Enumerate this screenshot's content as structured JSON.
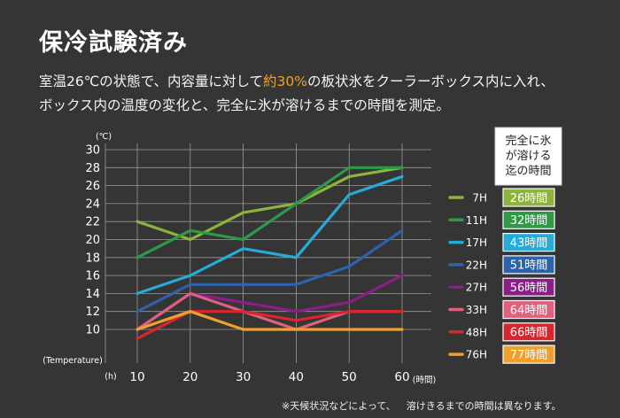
{
  "title": "保冷試験済み",
  "description": {
    "line1_before": "室温26℃の状態で、内容量に対して",
    "line1_highlight": "約30%",
    "line1_after": "の板状氷をクーラーボックス内に入れ、",
    "line2": "ボックス内の温度の変化と、完全に氷が溶けるまでの時間を測定。"
  },
  "footnote": {
    "part1": "※天候状況などによって、",
    "part2": "溶けきるまでの時間は異なります。"
  },
  "legend_header": [
    "完全に氷",
    "が溶ける",
    "迄の時間"
  ],
  "chart_data": {
    "type": "line",
    "x": [
      10,
      20,
      30,
      40,
      50,
      60
    ],
    "x_tick_labels": [
      "10",
      "20",
      "30",
      "40",
      "50",
      "60"
    ],
    "y_ticks": [
      10,
      12,
      14,
      16,
      18,
      20,
      22,
      24,
      26,
      28,
      30
    ],
    "ylim": [
      10,
      30
    ],
    "xlim": [
      10,
      60
    ],
    "ylabel_unit": "(℃)",
    "ylabel": "(Temperature)",
    "xlabel_unit": "(h)",
    "xlabel": "(時間)",
    "grid": true,
    "series": [
      {
        "name": "7H",
        "melt_time": "26時間",
        "color": "#8cb43c",
        "values": [
          22,
          20,
          23,
          24,
          27,
          28
        ]
      },
      {
        "name": "11H",
        "melt_time": "32時間",
        "color": "#2e9a46",
        "values": [
          18,
          21,
          20,
          24,
          28,
          28
        ]
      },
      {
        "name": "17H",
        "melt_time": "43時間",
        "color": "#25abd6",
        "values": [
          14,
          16,
          19,
          18,
          25,
          27
        ]
      },
      {
        "name": "22H",
        "melt_time": "51時間",
        "color": "#2c63ad",
        "values": [
          12,
          15,
          15,
          15,
          17,
          21
        ]
      },
      {
        "name": "27H",
        "melt_time": "56時間",
        "color": "#8b1e88",
        "values": [
          10,
          14,
          13,
          12,
          13,
          16
        ]
      },
      {
        "name": "33H",
        "melt_time": "64時間",
        "color": "#e0607e",
        "values": [
          10,
          14,
          12,
          10,
          12,
          12
        ]
      },
      {
        "name": "48H",
        "melt_time": "66時間",
        "color": "#d8262e",
        "values": [
          9,
          12,
          12,
          11,
          12,
          12
        ]
      },
      {
        "name": "76H",
        "melt_time": "77時間",
        "color": "#f0a02a",
        "values": [
          10,
          12,
          10,
          10,
          10,
          10
        ]
      }
    ]
  }
}
